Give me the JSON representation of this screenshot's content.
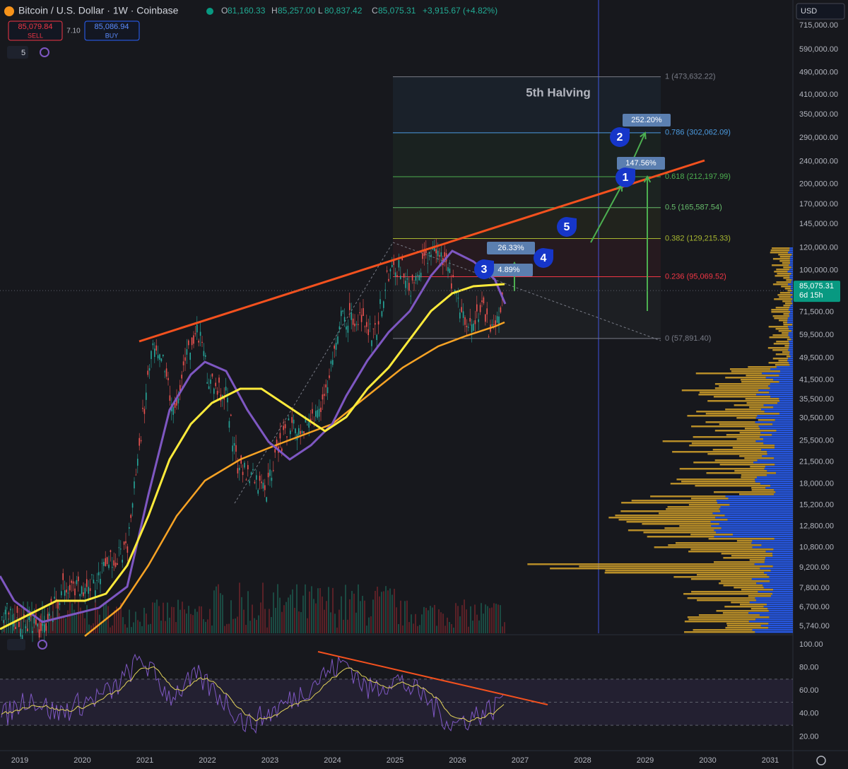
{
  "header": {
    "symbol": "Bitcoin / U.S. Dollar · 1W · Coinbase",
    "ohlc": [
      {
        "label": "O",
        "value": "81,160.33"
      },
      {
        "label": "H",
        "value": "85,257.00"
      },
      {
        "label": "L",
        "value": "80,837.42"
      },
      {
        "label": "C",
        "value": "85,075.31"
      },
      {
        "label": "",
        "value": "+3,915.67 (+4.82%)"
      }
    ],
    "sell": {
      "price": "85,079.84",
      "label": "SELL"
    },
    "spread": "7.10",
    "buy": {
      "price": "85,086.94",
      "label": "BUY"
    },
    "indicator_count": "5"
  },
  "currency": "USD",
  "price_axis": {
    "ticks": [
      {
        "value": 715000,
        "label": "715,000.00"
      },
      {
        "value": 590000,
        "label": "590,000.00"
      },
      {
        "value": 490000,
        "label": "490,000.00"
      },
      {
        "value": 410000,
        "label": "410,000.00"
      },
      {
        "value": 350000,
        "label": "350,000.00"
      },
      {
        "value": 290000,
        "label": "290,000.00"
      },
      {
        "value": 240000,
        "label": "240,000.00"
      },
      {
        "value": 200000,
        "label": "200,000.00"
      },
      {
        "value": 170000,
        "label": "170,000.00"
      },
      {
        "value": 145000,
        "label": "145,000.00"
      },
      {
        "value": 120000,
        "label": "120,000.00"
      },
      {
        "value": 100000,
        "label": "100,000.00"
      },
      {
        "value": 71500,
        "label": "71,500.00"
      },
      {
        "value": 59500,
        "label": "59,500.00"
      },
      {
        "value": 49500,
        "label": "49,500.00"
      },
      {
        "value": 41500,
        "label": "41,500.00"
      },
      {
        "value": 35500,
        "label": "35,500.00"
      },
      {
        "value": 30500,
        "label": "30,500.00"
      },
      {
        "value": 25500,
        "label": "25,500.00"
      },
      {
        "value": 21500,
        "label": "21,500.00"
      },
      {
        "value": 18000,
        "label": "18,000.00"
      },
      {
        "value": 15200,
        "label": "15,200.00"
      },
      {
        "value": 12800,
        "label": "12,800.00"
      },
      {
        "value": 10800,
        "label": "10,800.00"
      },
      {
        "value": 9200,
        "label": "9,200.00"
      },
      {
        "value": 7800,
        "label": "7,800.00"
      },
      {
        "value": 6700,
        "label": "6,700.00"
      },
      {
        "value": 5740,
        "label": "5,740.00"
      }
    ],
    "current": {
      "value": 85075.31,
      "label": "85,075.31"
    },
    "countdown": "6d 15h"
  },
  "fib_levels": [
    {
      "value": 473632.22,
      "label": "1 (473,632.22)",
      "color": "#787b86"
    },
    {
      "value": 302062.09,
      "label": "0.786 (302,062.09)",
      "color": "#4c9be0"
    },
    {
      "value": 212197.99,
      "label": "0.618 (212,197.99)",
      "color": "#4caf50"
    },
    {
      "value": 165587.54,
      "label": "0.5 (165,587.54)",
      "color": "#66bb6a"
    },
    {
      "value": 129215.33,
      "label": "0.382 (129,215.33)",
      "color": "#a8b830"
    },
    {
      "value": 95069.52,
      "label": "0.236 (95,069.52)",
      "color": "#f23645"
    },
    {
      "value": 57891.4,
      "label": "0 (57,891.40)",
      "color": "#787b86"
    }
  ],
  "annotations": {
    "halving": "5th Halving",
    "percents": [
      "252.20%",
      "147.56%",
      "26.33%",
      "4.89%"
    ],
    "markers": [
      "1",
      "2",
      "3",
      "4",
      "5"
    ]
  },
  "time_axis": {
    "ticks": [
      2019,
      2020,
      2021,
      2022,
      2023,
      2024,
      2025,
      2026,
      2027,
      2028,
      2029,
      2030,
      2031
    ]
  },
  "rsi_axis": {
    "ticks": [
      {
        "value": 100,
        "label": "100.00"
      },
      {
        "value": 80,
        "label": "80.00"
      },
      {
        "value": 60,
        "label": "60.00"
      },
      {
        "value": 40,
        "label": "40.00"
      },
      {
        "value": 20,
        "label": "20.00"
      }
    ]
  }
}
